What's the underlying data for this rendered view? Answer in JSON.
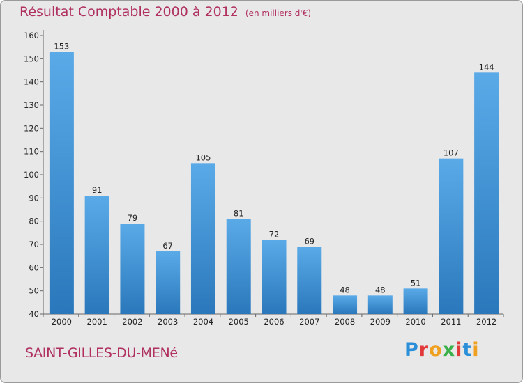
{
  "header": {
    "title": "Résultat Comptable 2000 à 2012",
    "unit": "(en milliers d'€)"
  },
  "footer": {
    "commune": "SAINT-GILLES-DU-MENé",
    "logo_text": "Proxiti",
    "logo_colors": [
      "#2a8fd8",
      "#e23a3a",
      "#f0a020",
      "#3bb04a",
      "#e23a3a",
      "#2a8fd8",
      "#f0a020"
    ]
  },
  "colors": {
    "title": "#b03060",
    "bar_top": "#5aaae8",
    "bar_bottom": "#2a78bb",
    "background": "#e8e8e8"
  },
  "chart_data": {
    "type": "bar",
    "title": "Résultat Comptable 2000 à 2012",
    "subtitle": "(en milliers d'€)",
    "categories": [
      "2000",
      "2001",
      "2002",
      "2003",
      "2004",
      "2005",
      "2006",
      "2007",
      "2008",
      "2009",
      "2010",
      "2011",
      "2012"
    ],
    "values": [
      153,
      91,
      79,
      67,
      105,
      81,
      72,
      69,
      48,
      48,
      51,
      107,
      144
    ],
    "ylim": [
      40,
      160
    ],
    "yticks": [
      40,
      50,
      60,
      70,
      80,
      90,
      100,
      110,
      120,
      130,
      140,
      150,
      160
    ],
    "grid": false,
    "xlabel": "",
    "ylabel": ""
  }
}
